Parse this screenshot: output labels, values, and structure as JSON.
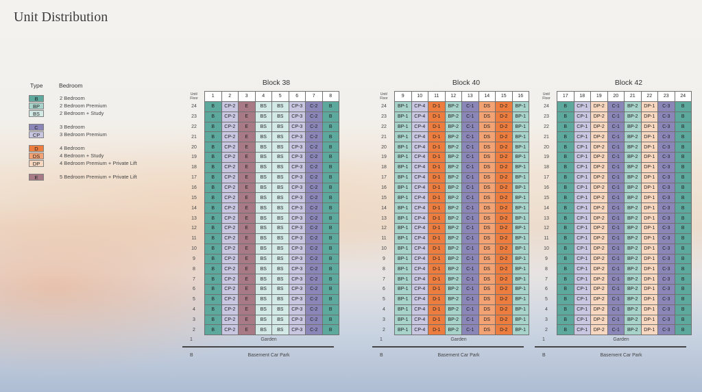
{
  "title": "Unit Distribution",
  "legend": {
    "type_header": "Type",
    "bedroom_header": "Bedroom",
    "groups": [
      [
        {
          "code": "B",
          "label": "2 Bedroom"
        },
        {
          "code": "BP",
          "label": "2 Bedroom Premium"
        },
        {
          "code": "BS",
          "label": "2 Bedroom + Study"
        }
      ],
      [
        {
          "code": "C",
          "label": "3 Bedroom"
        },
        {
          "code": "CP",
          "label": "3 Bedroom Premium"
        }
      ],
      [
        {
          "code": "D",
          "label": "4 Bedroom"
        },
        {
          "code": "DS",
          "label": "4 Bedroom + Study"
        },
        {
          "code": "DP",
          "label": "4 Bedroom Premium + Private Lift"
        }
      ],
      [
        {
          "code": "E",
          "label": "5 Bedroom Premium + Private Lift"
        }
      ]
    ]
  },
  "colors": {
    "B": "#5ea99e",
    "BP": "#a7d3ca",
    "BS": "#d3e9e5",
    "C": "#8a87b8",
    "CP": "#c9c6e1",
    "D": "#ec7d3e",
    "DS": "#f2a273",
    "DP": "#f8d7c0",
    "E": "#a77a85"
  },
  "corner_label_line1": "Unit/",
  "corner_label_line2": "Floor",
  "floors": [
    "24",
    "23",
    "22",
    "21",
    "20",
    "19",
    "18",
    "17",
    "16",
    "15",
    "14",
    "13",
    "12",
    "11",
    "10",
    "9",
    "8",
    "7",
    "6",
    "5",
    "4",
    "3",
    "2"
  ],
  "ground_level": "1",
  "ground_label": "Garden",
  "basement_level": "B",
  "basement_label": "Basement Car Park",
  "blocks": [
    {
      "name": "Block 38",
      "units": [
        "1",
        "2",
        "3",
        "4",
        "5",
        "6",
        "7",
        "8"
      ],
      "cells": [
        "B",
        "CP-2",
        "E",
        "BS",
        "BS",
        "CP-3",
        "C-2",
        "B"
      ]
    },
    {
      "name": "Block 40",
      "units": [
        "9",
        "10",
        "11",
        "12",
        "13",
        "14",
        "15",
        "16"
      ],
      "cells": [
        "BP-1",
        "CP-4",
        "D-1",
        "BP-2",
        "C-1",
        "DS",
        "D-2",
        "BP-1"
      ]
    },
    {
      "name": "Block 42",
      "units": [
        "17",
        "18",
        "19",
        "20",
        "21",
        "22",
        "23",
        "24"
      ],
      "cells": [
        "B",
        "CP-1",
        "DP-2",
        "C-1",
        "BP-2",
        "DP-1",
        "C-3",
        "B"
      ]
    }
  ]
}
